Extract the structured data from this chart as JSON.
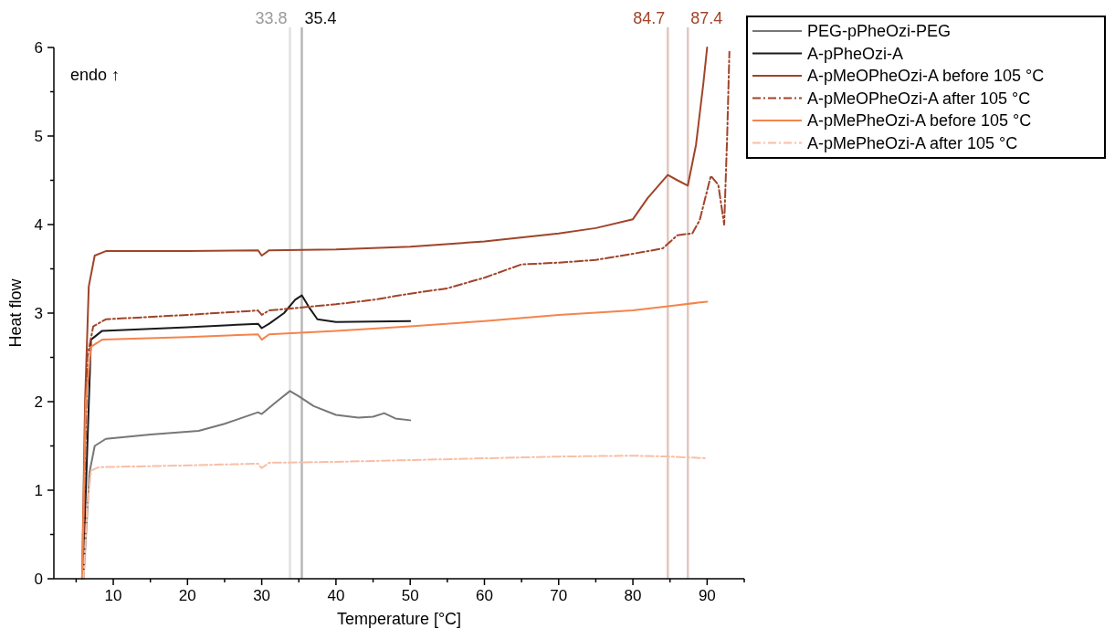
{
  "chart_data": {
    "type": "line",
    "xlabel": "Temperature [°C]",
    "ylabel": "Heat flow",
    "annotations": [
      "endo ↑"
    ],
    "xlim": [
      2,
      95
    ],
    "xticks": [
      {
        "value": 5,
        "label": null
      },
      10,
      {
        "value": 15,
        "label": null
      },
      20,
      {
        "value": 25,
        "label": null
      },
      30,
      {
        "value": 35,
        "label": null
      },
      40,
      {
        "value": 45,
        "label": null
      },
      50,
      {
        "value": 55,
        "label": null
      },
      60,
      {
        "value": 65,
        "label": null
      },
      70,
      {
        "value": 75,
        "label": null
      },
      80,
      {
        "value": 85,
        "label": null
      },
      90,
      {
        "value": 95,
        "label": null
      }
    ],
    "ylim": [
      0,
      6
    ],
    "yticks": [
      0,
      {
        "value": 0.5,
        "label": null
      },
      1,
      {
        "value": 1.5,
        "label": null
      },
      2,
      {
        "value": 2.5,
        "label": null
      },
      3,
      {
        "value": 3.5,
        "label": null
      },
      4,
      {
        "value": 4.5,
        "label": null
      },
      5,
      {
        "value": 5.5,
        "label": null
      },
      6
    ],
    "grid": false,
    "legend": "right",
    "ref_lines": [
      {
        "axis": "x",
        "value": 33.8,
        "label": "33.8",
        "color": "#9a9a9a"
      },
      {
        "axis": "x",
        "value": 35.4,
        "label": "35.4",
        "color": "#111111"
      },
      {
        "axis": "x",
        "value": 84.7,
        "label": "84.7",
        "color": "#a0442a"
      },
      {
        "axis": "x",
        "value": 87.4,
        "label": "87.4",
        "color": "#a0442a"
      }
    ],
    "series": [
      {
        "name": "PEG-pPheOzi-PEG",
        "color": "#777777",
        "line_style": "solid",
        "x": [
          6,
          6.8,
          7.5,
          9,
          15,
          21.5,
          25,
          29.5,
          30,
          32,
          33.8,
          35,
          37,
          40,
          43,
          45,
          46.5,
          48,
          50
        ],
        "values": [
          0,
          1.2,
          1.5,
          1.58,
          1.63,
          1.67,
          1.75,
          1.88,
          1.86,
          2.0,
          2.12,
          2.06,
          1.95,
          1.85,
          1.82,
          1.83,
          1.87,
          1.81,
          1.79
        ]
      },
      {
        "name": "A-pPheOzi-A",
        "color": "#1a1a1a",
        "line_style": "solid",
        "x": [
          5.9,
          7,
          8.5,
          20,
          29.5,
          30,
          31,
          33,
          34.5,
          35.4,
          36.5,
          37.5,
          40,
          50
        ],
        "values": [
          0,
          2.7,
          2.8,
          2.84,
          2.88,
          2.83,
          2.88,
          3.0,
          3.15,
          3.2,
          3.05,
          2.93,
          2.9,
          2.91
        ]
      },
      {
        "name": "A-pMeOPheOzi-A before 105 °C",
        "color": "#a0442a",
        "line_style": "solid",
        "x": [
          5.8,
          6.2,
          6.7,
          7.5,
          9,
          20,
          29.5,
          30,
          31,
          40,
          50,
          60,
          70,
          75,
          80,
          82,
          84.7,
          86,
          87.4,
          88.5,
          89.5,
          90
        ],
        "values": [
          0,
          2,
          3.3,
          3.65,
          3.7,
          3.7,
          3.71,
          3.65,
          3.71,
          3.72,
          3.75,
          3.81,
          3.9,
          3.96,
          4.06,
          4.3,
          4.56,
          4.5,
          4.44,
          4.9,
          5.6,
          6
        ]
      },
      {
        "name": "A-pMeOPheOzi-A after 105 °C",
        "color": "#a0442a",
        "line_style": "dashdot",
        "x": [
          5.9,
          6.5,
          7.3,
          9,
          20,
          29.5,
          30,
          31,
          40,
          45,
          50,
          55,
          60,
          65,
          70,
          75,
          80,
          84,
          86,
          88,
          89,
          90.5,
          91.5,
          92.3,
          92.7,
          93
        ],
        "values": [
          0,
          2.5,
          2.85,
          2.93,
          2.98,
          3.03,
          2.98,
          3.03,
          3.1,
          3.15,
          3.22,
          3.28,
          3.4,
          3.55,
          3.57,
          3.6,
          3.67,
          3.73,
          3.88,
          3.9,
          4.05,
          4.55,
          4.45,
          4.0,
          5.0,
          5.95
        ]
      },
      {
        "name": "A-pMePheOzi-A before 105 °C",
        "color": "#f4844c",
        "line_style": "solid",
        "x": [
          5.8,
          6.3,
          7,
          8.5,
          20,
          29.5,
          30,
          31,
          40,
          50,
          60,
          70,
          80,
          85,
          90
        ],
        "values": [
          0,
          2,
          2.62,
          2.7,
          2.73,
          2.76,
          2.7,
          2.76,
          2.8,
          2.85,
          2.91,
          2.98,
          3.03,
          3.08,
          3.13
        ]
      },
      {
        "name": "A-pMePheOzi-A after 105 °C",
        "color": "#f8bfa6",
        "line_style": "dashdot",
        "x": [
          6,
          6.5,
          7,
          8,
          20,
          29.5,
          30,
          31,
          40,
          50,
          60,
          70,
          80,
          85,
          90
        ],
        "values": [
          0,
          0.8,
          1.22,
          1.26,
          1.28,
          1.3,
          1.25,
          1.31,
          1.32,
          1.34,
          1.36,
          1.38,
          1.39,
          1.38,
          1.36
        ]
      }
    ]
  }
}
